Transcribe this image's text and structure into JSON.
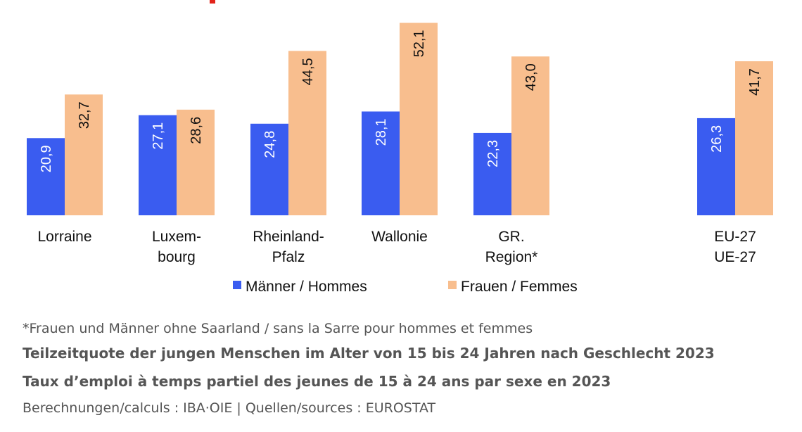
{
  "colors": {
    "men": "#3a5cf0",
    "women": "#f8be8e",
    "axis_text": "#111111",
    "notes_text": "#555555",
    "men_label": "#ffffff",
    "women_label": "#111111"
  },
  "chart_data": {
    "type": "bar",
    "categories": [
      [
        "Lorraine"
      ],
      [
        "Luxem-",
        "bourg"
      ],
      [
        "Rheinland-",
        "Pfalz"
      ],
      [
        "Wallonie"
      ],
      [
        "GR.",
        "Region*"
      ],
      [
        "EU-27",
        "UE-27"
      ]
    ],
    "series": [
      {
        "name": "Männer / Hommes",
        "values": [
          20.9,
          27.1,
          24.8,
          28.1,
          22.3,
          26.3
        ],
        "labels": [
          "20,9",
          "27,1",
          "24,8",
          "28,1",
          "22,3",
          "26,3"
        ]
      },
      {
        "name": "Frauen / Femmes",
        "values": [
          32.7,
          28.6,
          44.5,
          52.1,
          43.0,
          41.7
        ],
        "labels": [
          "32,7",
          "28,6",
          "44,5",
          "52,1",
          "43,0",
          "41,7"
        ]
      }
    ],
    "ylim": [
      0,
      55
    ],
    "grid": false,
    "legend": "bottom",
    "title": "",
    "xlabel": "",
    "ylabel": ""
  },
  "notes": {
    "footnote": "*Frauen und Männer ohne Saarland / sans la Sarre pour hommes et femmes",
    "title_de": "Teilzeitquote der jungen Menschen im Alter von 15 bis 24 Jahren nach Geschlecht 2023",
    "title_fr": "Taux d’emploi à temps partiel des jeunes de 15 à 24 ans par sexe en 2023",
    "source": "Berechnungen/calculs : IBA·OIE | Quellen/sources : EUROSTAT"
  }
}
